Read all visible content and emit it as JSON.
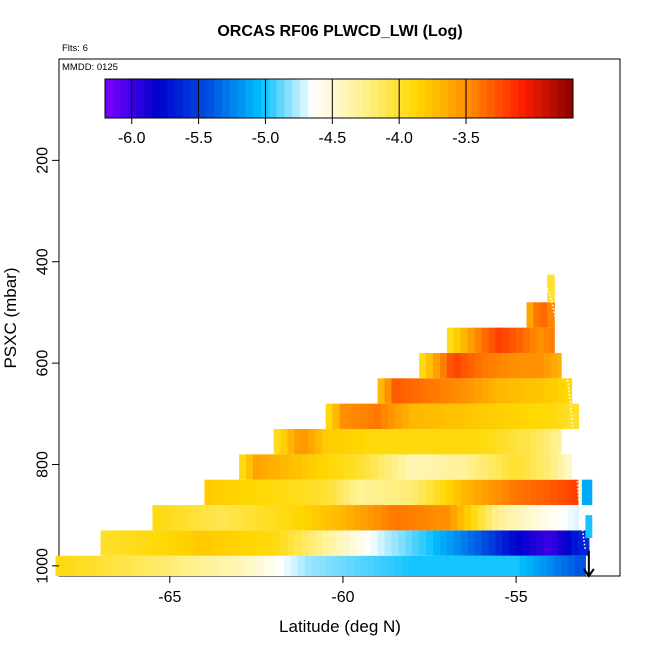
{
  "chart_data": {
    "type": "heatmap",
    "title": "ORCAS RF06 PLWCD_LWI (Log)",
    "top_left_note": "Flts: 6",
    "inset_note": "MMDD: 0125",
    "xlabel": "Latitude (deg N)",
    "ylabel": "PSXC (mbar)",
    "xlim": [
      -68.2,
      -52.0
    ],
    "ylim": [
      1020,
      0
    ],
    "x_ticks": [
      "-65",
      "-60",
      "-55"
    ],
    "x_tick_values": [
      -65,
      -60,
      -55
    ],
    "y_ticks": [
      "200",
      "400",
      "600",
      "800",
      "1000"
    ],
    "y_tick_values": [
      200,
      400,
      600,
      800,
      1000
    ],
    "colorbar": {
      "range": [
        -6.2,
        -2.7
      ],
      "ticks": [
        "-6.0",
        "-5.5",
        "-5.0",
        "-4.5",
        "-4.0",
        "-3.5"
      ],
      "tick_values": [
        -6.0,
        -5.5,
        -5.0,
        -4.5,
        -4.0,
        -3.5
      ],
      "colors": [
        "#7f00ff",
        "#0000cd",
        "#0050e0",
        "#00bfff",
        "#ffffff",
        "#fff08a",
        "#ffd700",
        "#ff8c00",
        "#ff2000",
        "#8b0000"
      ]
    },
    "pressure_bins": [
      {
        "p_top": 980,
        "p_bot": 1030,
        "lat_start": -68.3,
        "lat_end": -53.0,
        "value_knots": [
          [
            -68.3,
            -3.9
          ],
          [
            -66,
            -4.1
          ],
          [
            -63,
            -4.4
          ],
          [
            -61,
            -4.8
          ],
          [
            -58,
            -5.0
          ],
          [
            -55,
            -5.0
          ],
          [
            -53.2,
            -5.4
          ]
        ]
      },
      {
        "p_top": 930,
        "p_bot": 980,
        "lat_start": -67.0,
        "lat_end": -52.9,
        "value_knots": [
          [
            -67,
            -4.0
          ],
          [
            -64,
            -3.8
          ],
          [
            -62,
            -3.9
          ],
          [
            -60.5,
            -4.3
          ],
          [
            -59,
            -4.7
          ],
          [
            -57.5,
            -5.0
          ],
          [
            -56,
            -5.4
          ],
          [
            -55,
            -5.8
          ],
          [
            -54,
            -6.0
          ],
          [
            -53.3,
            -5.7
          ],
          [
            -52.9,
            -5.6
          ]
        ]
      },
      {
        "p_top": 880,
        "p_bot": 930,
        "lat_start": -65.5,
        "lat_end": -53.2,
        "value_knots": [
          [
            -65.5,
            -3.9
          ],
          [
            -63.5,
            -4.1
          ],
          [
            -61.5,
            -3.9
          ],
          [
            -60,
            -3.7
          ],
          [
            -58.5,
            -3.4
          ],
          [
            -57,
            -3.5
          ],
          [
            -55.5,
            -4.3
          ],
          [
            -54,
            -4.6
          ],
          [
            -53.2,
            -4.7
          ]
        ]
      },
      {
        "p_top": 830,
        "p_bot": 880,
        "lat_start": -64.0,
        "lat_end": -52.9,
        "value_knots": [
          [
            -64,
            -3.8
          ],
          [
            -62,
            -3.9
          ],
          [
            -60.5,
            -4.0
          ],
          [
            -59.5,
            -4.3
          ],
          [
            -58,
            -4.2
          ],
          [
            -56.5,
            -3.7
          ],
          [
            -55,
            -3.4
          ],
          [
            -54,
            -3.3
          ],
          [
            -53.3,
            -3.2
          ],
          [
            -53.0,
            -5.1
          ]
        ]
      },
      {
        "p_top": 780,
        "p_bot": 830,
        "lat_start": -63.0,
        "lat_end": -53.4,
        "value_knots": [
          [
            -63,
            -4.0
          ],
          [
            -62.5,
            -3.6
          ],
          [
            -61,
            -3.8
          ],
          [
            -59.5,
            -4.0
          ],
          [
            -58,
            -4.4
          ],
          [
            -56.5,
            -4.3
          ],
          [
            -55,
            -4.0
          ],
          [
            -54,
            -4.2
          ],
          [
            -53.4,
            -4.5
          ]
        ]
      },
      {
        "p_top": 730,
        "p_bot": 780,
        "lat_start": -62.0,
        "lat_end": -53.7,
        "value_knots": [
          [
            -62,
            -4.0
          ],
          [
            -61.2,
            -3.5
          ],
          [
            -60.5,
            -3.8
          ],
          [
            -59,
            -3.9
          ],
          [
            -57.5,
            -3.9
          ],
          [
            -56,
            -3.9
          ],
          [
            -54.5,
            -4.1
          ],
          [
            -53.7,
            -4.3
          ]
        ]
      },
      {
        "p_top": 680,
        "p_bot": 730,
        "lat_start": -60.5,
        "lat_end": -53.2,
        "value_knots": [
          [
            -60.5,
            -4.0
          ],
          [
            -60,
            -3.5
          ],
          [
            -59,
            -3.4
          ],
          [
            -58,
            -3.7
          ],
          [
            -56,
            -3.8
          ],
          [
            -54,
            -3.9
          ],
          [
            -53.2,
            -4.0
          ]
        ]
      },
      {
        "p_top": 630,
        "p_bot": 680,
        "lat_start": -59.0,
        "lat_end": -53.4,
        "value_knots": [
          [
            -59,
            -3.8
          ],
          [
            -58.5,
            -3.3
          ],
          [
            -57.5,
            -3.4
          ],
          [
            -56.5,
            -3.5
          ],
          [
            -55.5,
            -3.7
          ],
          [
            -54,
            -3.8
          ],
          [
            -53.4,
            -3.9
          ]
        ]
      },
      {
        "p_top": 580,
        "p_bot": 630,
        "lat_start": -57.8,
        "lat_end": -53.7,
        "value_knots": [
          [
            -57.8,
            -4.0
          ],
          [
            -57.2,
            -3.5
          ],
          [
            -56.8,
            -3.2
          ],
          [
            -56,
            -3.4
          ],
          [
            -55,
            -3.5
          ],
          [
            -54.3,
            -3.5
          ],
          [
            -53.7,
            -3.7
          ]
        ]
      },
      {
        "p_top": 530,
        "p_bot": 580,
        "lat_start": -57.0,
        "lat_end": -53.9,
        "value_knots": [
          [
            -57,
            -4.0
          ],
          [
            -56.5,
            -3.7
          ],
          [
            -56,
            -3.4
          ],
          [
            -55.5,
            -3.2
          ],
          [
            -55,
            -3.3
          ],
          [
            -54.3,
            -3.5
          ],
          [
            -53.9,
            -3.4
          ]
        ]
      },
      {
        "p_top": 480,
        "p_bot": 530,
        "lat_start": -54.7,
        "lat_end": -53.9,
        "value_knots": [
          [
            -54.7,
            -3.7
          ],
          [
            -54.3,
            -3.3
          ],
          [
            -53.9,
            -3.5
          ]
        ]
      },
      {
        "p_top": 430,
        "p_bot": 480,
        "lat_start": -54.1,
        "lat_end": -53.9,
        "value_knots": [
          [
            -54.1,
            -4.0
          ],
          [
            -53.9,
            -4.0
          ]
        ]
      }
    ],
    "cells": [
      {
        "p_top": 900,
        "p_bot": 945,
        "lat_start": -53.0,
        "lat_end": -52.8,
        "value": -5.0
      },
      {
        "p_top": 830,
        "p_bot": 880,
        "lat_start": -53.1,
        "lat_end": -52.8,
        "value": -5.1
      },
      {
        "p_top": 425,
        "p_bot": 480,
        "lat_start": -54.1,
        "lat_end": -53.9,
        "value": -4.0
      }
    ],
    "flight_track": [
      [
        -54.3,
        420
      ],
      [
        -54.0,
        470
      ],
      [
        -53.7,
        560
      ],
      [
        -53.5,
        640
      ],
      [
        -53.4,
        700
      ],
      [
        -53.3,
        780
      ],
      [
        -53.2,
        860
      ],
      [
        -53.1,
        920
      ],
      [
        -53.0,
        970
      ]
    ],
    "arrow": {
      "lat": -52.9,
      "p_from": 970,
      "p_to": 1020
    }
  }
}
